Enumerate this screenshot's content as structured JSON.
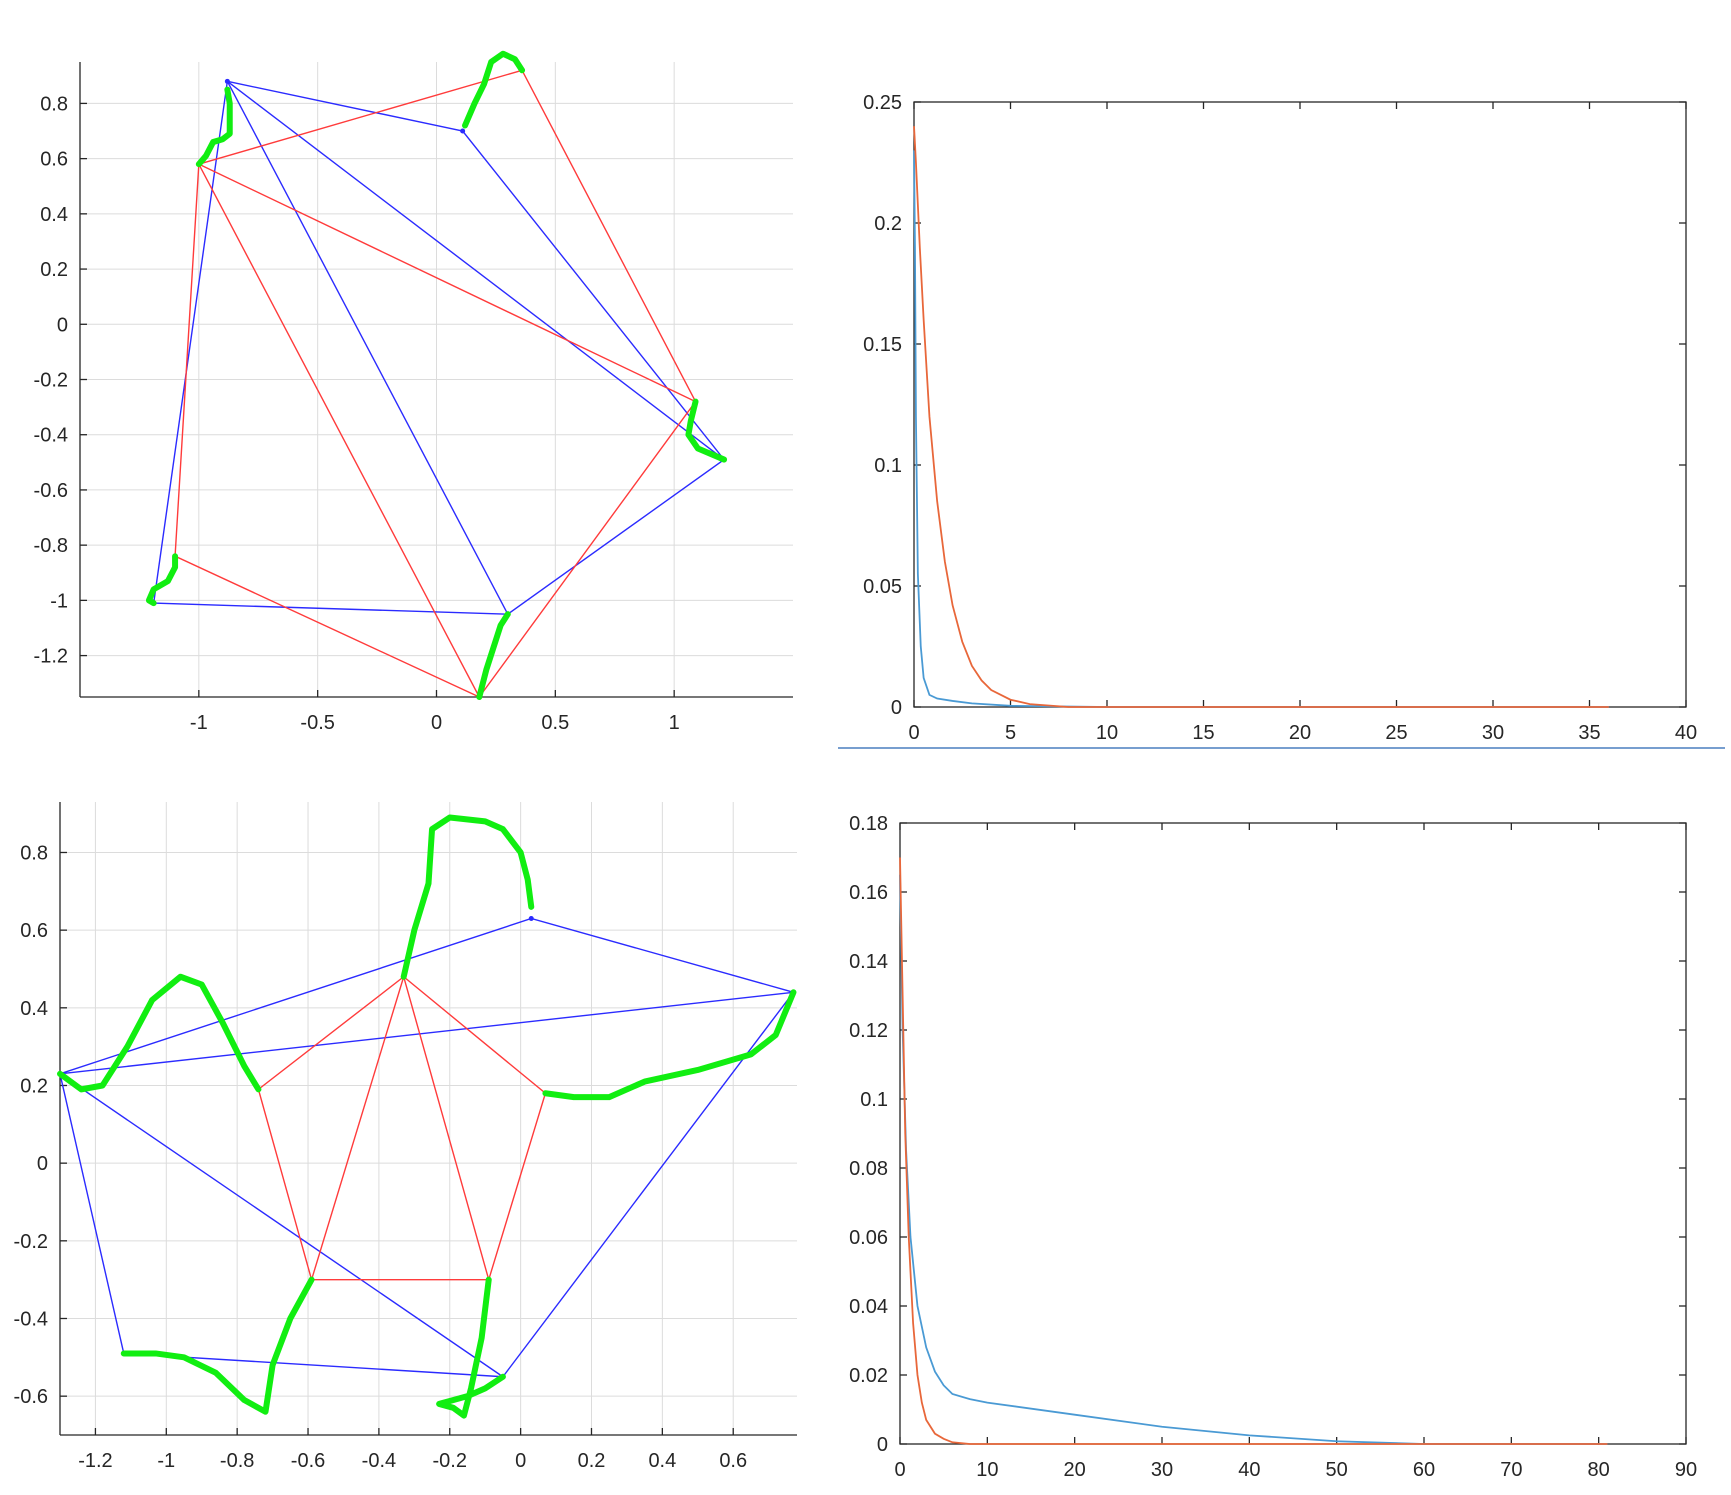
{
  "colors": {
    "blue": "#2b2bff",
    "red": "#ff3b3b",
    "green": "#11ee11",
    "series_blue": "#4a9ad4",
    "series_orange": "#e8673a",
    "divider": "#4a7fbf"
  },
  "chart_data": [
    {
      "id": "polygon1",
      "type": "line",
      "xlim": [
        -1.5,
        1.5
      ],
      "ylim": [
        -1.35,
        0.95
      ],
      "grid": true,
      "xticks": [
        -1,
        -0.5,
        0,
        0.5,
        1
      ],
      "xtick_labels": [
        "-1",
        "-0.5",
        "0",
        "0.5",
        "1"
      ],
      "yticks": [
        0.8,
        0.6,
        0.4,
        0.2,
        0,
        -0.2,
        -0.4,
        -0.6,
        -0.8,
        -1,
        -1.2
      ],
      "ytick_labels": [
        "0.8",
        "0.6",
        "0.4",
        "0.2",
        "0",
        "-0.2",
        "-0.4",
        "-0.6",
        "-0.8",
        "-1",
        "-1.2"
      ],
      "blue_vertices": [
        [
          -0.88,
          0.88
        ],
        [
          0.11,
          0.7
        ],
        [
          1.21,
          -0.49
        ],
        [
          0.3,
          -1.05
        ],
        [
          -1.19,
          -1.01
        ]
      ],
      "red_vertices": [
        [
          -1.0,
          0.58
        ],
        [
          0.36,
          0.92
        ],
        [
          1.09,
          -0.28
        ],
        [
          0.18,
          -1.35
        ],
        [
          -1.1,
          -0.84
        ]
      ],
      "green_curves": [
        [
          [
            -1.0,
            0.58
          ],
          [
            -0.97,
            0.61
          ],
          [
            -0.94,
            0.66
          ],
          [
            -0.9,
            0.67
          ],
          [
            -0.87,
            0.69
          ],
          [
            -0.87,
            0.74
          ],
          [
            -0.87,
            0.8
          ],
          [
            -0.88,
            0.85
          ]
        ],
        [
          [
            0.12,
            0.72
          ],
          [
            0.16,
            0.8
          ],
          [
            0.2,
            0.87
          ],
          [
            0.23,
            0.95
          ],
          [
            0.28,
            0.98
          ],
          [
            0.33,
            0.96
          ],
          [
            0.36,
            0.92
          ]
        ],
        [
          [
            1.09,
            -0.28
          ],
          [
            1.07,
            -0.35
          ],
          [
            1.06,
            -0.4
          ],
          [
            1.1,
            -0.45
          ],
          [
            1.21,
            -0.49
          ]
        ],
        [
          [
            0.18,
            -1.35
          ],
          [
            0.21,
            -1.25
          ],
          [
            0.24,
            -1.17
          ],
          [
            0.27,
            -1.09
          ],
          [
            0.3,
            -1.05
          ]
        ],
        [
          [
            -1.1,
            -0.84
          ],
          [
            -1.1,
            -0.88
          ],
          [
            -1.13,
            -0.93
          ],
          [
            -1.19,
            -0.96
          ],
          [
            -1.21,
            -1.0
          ],
          [
            -1.19,
            -1.01
          ]
        ]
      ]
    },
    {
      "id": "error1",
      "type": "line",
      "xlim": [
        0,
        40
      ],
      "ylim": [
        0,
        0.25
      ],
      "grid": false,
      "xticks": [
        0,
        5,
        10,
        15,
        20,
        25,
        30,
        35,
        40
      ],
      "xtick_labels": [
        "0",
        "5",
        "10",
        "15",
        "20",
        "25",
        "30",
        "35",
        "40"
      ],
      "yticks": [
        0,
        0.05,
        0.1,
        0.15,
        0.2,
        0.25
      ],
      "ytick_labels": [
        "0",
        "0.05",
        "0.1",
        "0.15",
        "0.2",
        "0.25"
      ],
      "series": [
        {
          "color": "blue",
          "x": [
            0,
            0.05,
            0.1,
            0.2,
            0.35,
            0.5,
            0.8,
            1.2,
            2,
            3,
            5,
            10,
            36
          ],
          "y": [
            0.23,
            0.19,
            0.12,
            0.055,
            0.025,
            0.012,
            0.005,
            0.0035,
            0.0025,
            0.0015,
            0.0005,
            0.0,
            0.0
          ]
        },
        {
          "color": "orange",
          "x": [
            0,
            0.1,
            0.3,
            0.5,
            0.8,
            1.2,
            1.6,
            2,
            2.5,
            3,
            3.5,
            4,
            5,
            6,
            8,
            36
          ],
          "y": [
            0.24,
            0.225,
            0.19,
            0.16,
            0.12,
            0.085,
            0.06,
            0.042,
            0.027,
            0.017,
            0.011,
            0.007,
            0.003,
            0.0012,
            0.0,
            0.0
          ]
        }
      ]
    },
    {
      "id": "polygon2",
      "type": "line",
      "xlim": [
        -1.3,
        0.78
      ],
      "ylim": [
        -0.7,
        0.93
      ],
      "grid": true,
      "xticks": [
        -1.2,
        -1,
        -0.8,
        -0.6,
        -0.4,
        -0.2,
        0,
        0.2,
        0.4,
        0.6
      ],
      "xtick_labels": [
        "-1.2",
        "-1",
        "-0.8",
        "-0.6",
        "-0.4",
        "-0.2",
        "0",
        "0.2",
        "0.4",
        "0.6"
      ],
      "yticks": [
        0.8,
        0.6,
        0.4,
        0.2,
        0,
        -0.2,
        -0.4,
        -0.6
      ],
      "ytick_labels": [
        "0.8",
        "0.6",
        "0.4",
        "0.2",
        "0",
        "-0.2",
        "-0.4",
        "-0.6"
      ],
      "blue_vertices": [
        [
          -1.3,
          0.23
        ],
        [
          0.03,
          0.63
        ],
        [
          0.77,
          0.44
        ],
        [
          -0.05,
          -0.55
        ],
        [
          -1.12,
          -0.49
        ]
      ],
      "red_vertices": [
        [
          -0.33,
          0.48
        ],
        [
          0.07,
          0.18
        ],
        [
          -0.09,
          -0.3
        ],
        [
          -0.59,
          -0.3
        ],
        [
          -0.74,
          0.19
        ]
      ],
      "green_curves": [
        [
          [
            -1.3,
            0.23
          ],
          [
            -1.24,
            0.19
          ],
          [
            -1.18,
            0.2
          ],
          [
            -1.11,
            0.3
          ],
          [
            -1.04,
            0.42
          ],
          [
            -0.96,
            0.48
          ],
          [
            -0.9,
            0.46
          ],
          [
            -0.84,
            0.36
          ],
          [
            -0.78,
            0.25
          ],
          [
            -0.74,
            0.19
          ]
        ],
        [
          [
            -0.33,
            0.48
          ],
          [
            -0.3,
            0.6
          ],
          [
            -0.26,
            0.72
          ],
          [
            -0.25,
            0.86
          ],
          [
            -0.2,
            0.89
          ],
          [
            -0.1,
            0.88
          ],
          [
            -0.05,
            0.86
          ],
          [
            0.0,
            0.8
          ],
          [
            0.02,
            0.73
          ],
          [
            0.03,
            0.66
          ]
        ],
        [
          [
            0.07,
            0.18
          ],
          [
            0.15,
            0.17
          ],
          [
            0.25,
            0.17
          ],
          [
            0.35,
            0.21
          ],
          [
            0.5,
            0.24
          ],
          [
            0.65,
            0.28
          ],
          [
            0.72,
            0.33
          ],
          [
            0.77,
            0.44
          ]
        ],
        [
          [
            -0.09,
            -0.3
          ],
          [
            -0.11,
            -0.45
          ],
          [
            -0.14,
            -0.58
          ],
          [
            -0.16,
            -0.65
          ],
          [
            -0.19,
            -0.63
          ],
          [
            -0.23,
            -0.62
          ],
          [
            -0.15,
            -0.6
          ],
          [
            -0.1,
            -0.58
          ],
          [
            -0.05,
            -0.55
          ]
        ],
        [
          [
            -0.59,
            -0.3
          ],
          [
            -0.65,
            -0.4
          ],
          [
            -0.7,
            -0.52
          ],
          [
            -0.72,
            -0.64
          ],
          [
            -0.78,
            -0.61
          ],
          [
            -0.86,
            -0.54
          ],
          [
            -0.95,
            -0.5
          ],
          [
            -1.03,
            -0.49
          ],
          [
            -1.12,
            -0.49
          ]
        ]
      ]
    },
    {
      "id": "error2",
      "type": "line",
      "xlim": [
        0,
        90
      ],
      "ylim": [
        0,
        0.18
      ],
      "grid": false,
      "xticks": [
        0,
        10,
        20,
        30,
        40,
        50,
        60,
        70,
        80,
        90
      ],
      "xtick_labels": [
        "0",
        "10",
        "20",
        "30",
        "40",
        "50",
        "60",
        "70",
        "80",
        "90"
      ],
      "yticks": [
        0,
        0.02,
        0.04,
        0.06,
        0.08,
        0.1,
        0.12,
        0.14,
        0.16,
        0.18
      ],
      "ytick_labels": [
        "0",
        "0.02",
        "0.04",
        "0.06",
        "0.08",
        "0.1",
        "0.12",
        "0.14",
        "0.16",
        "0.18"
      ],
      "series": [
        {
          "color": "blue",
          "x": [
            0,
            0.3,
            0.7,
            1.2,
            2,
            3,
            4,
            5,
            6,
            8,
            10,
            20,
            30,
            40,
            50,
            60,
            81
          ],
          "y": [
            0.165,
            0.12,
            0.085,
            0.06,
            0.04,
            0.028,
            0.021,
            0.017,
            0.0145,
            0.013,
            0.012,
            0.0085,
            0.005,
            0.0025,
            0.0008,
            0.0,
            0.0
          ]
        },
        {
          "color": "orange",
          "x": [
            0,
            0.3,
            0.6,
            1,
            1.5,
            2,
            2.5,
            3,
            4,
            5,
            6,
            8,
            81
          ],
          "y": [
            0.17,
            0.13,
            0.09,
            0.06,
            0.035,
            0.02,
            0.012,
            0.007,
            0.003,
            0.0015,
            0.0005,
            0.0,
            0.0
          ]
        }
      ]
    }
  ]
}
